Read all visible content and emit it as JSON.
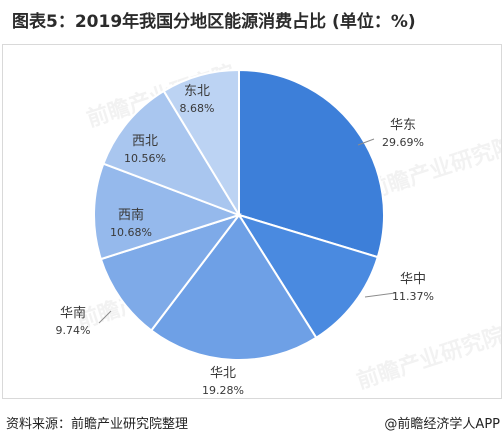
{
  "title": "图表5：2019年我国分地区能源消费占比 (单位：%)",
  "source": "资料来源：前瞻产业研究院整理",
  "credit": "@前瞻经济学人APP",
  "watermark": "前瞻产业研究院",
  "colors": {
    "华东": "#3d7fd9",
    "华中": "#4a8ae0",
    "华北": "#6ea0e6",
    "华南": "#7eaae8",
    "西南": "#95b9ec",
    "西北": "#a9c6ef",
    "东北": "#bcd3f3"
  },
  "chart_data": {
    "type": "pie",
    "title": "图表5：2019年我国分地区能源消费占比 (单位：%)",
    "unit": "%",
    "slices": [
      {
        "label": "华东",
        "value": 29.69,
        "display": "29.69%"
      },
      {
        "label": "华中",
        "value": 11.37,
        "display": "11.37%"
      },
      {
        "label": "华北",
        "value": 19.28,
        "display": "19.28%"
      },
      {
        "label": "华南",
        "value": 9.74,
        "display": "9.74%"
      },
      {
        "label": "西南",
        "value": 10.68,
        "display": "10.68%"
      },
      {
        "label": "西北",
        "value": 10.56,
        "display": "10.56%"
      },
      {
        "label": "东北",
        "value": 8.68,
        "display": "8.68%"
      }
    ]
  }
}
